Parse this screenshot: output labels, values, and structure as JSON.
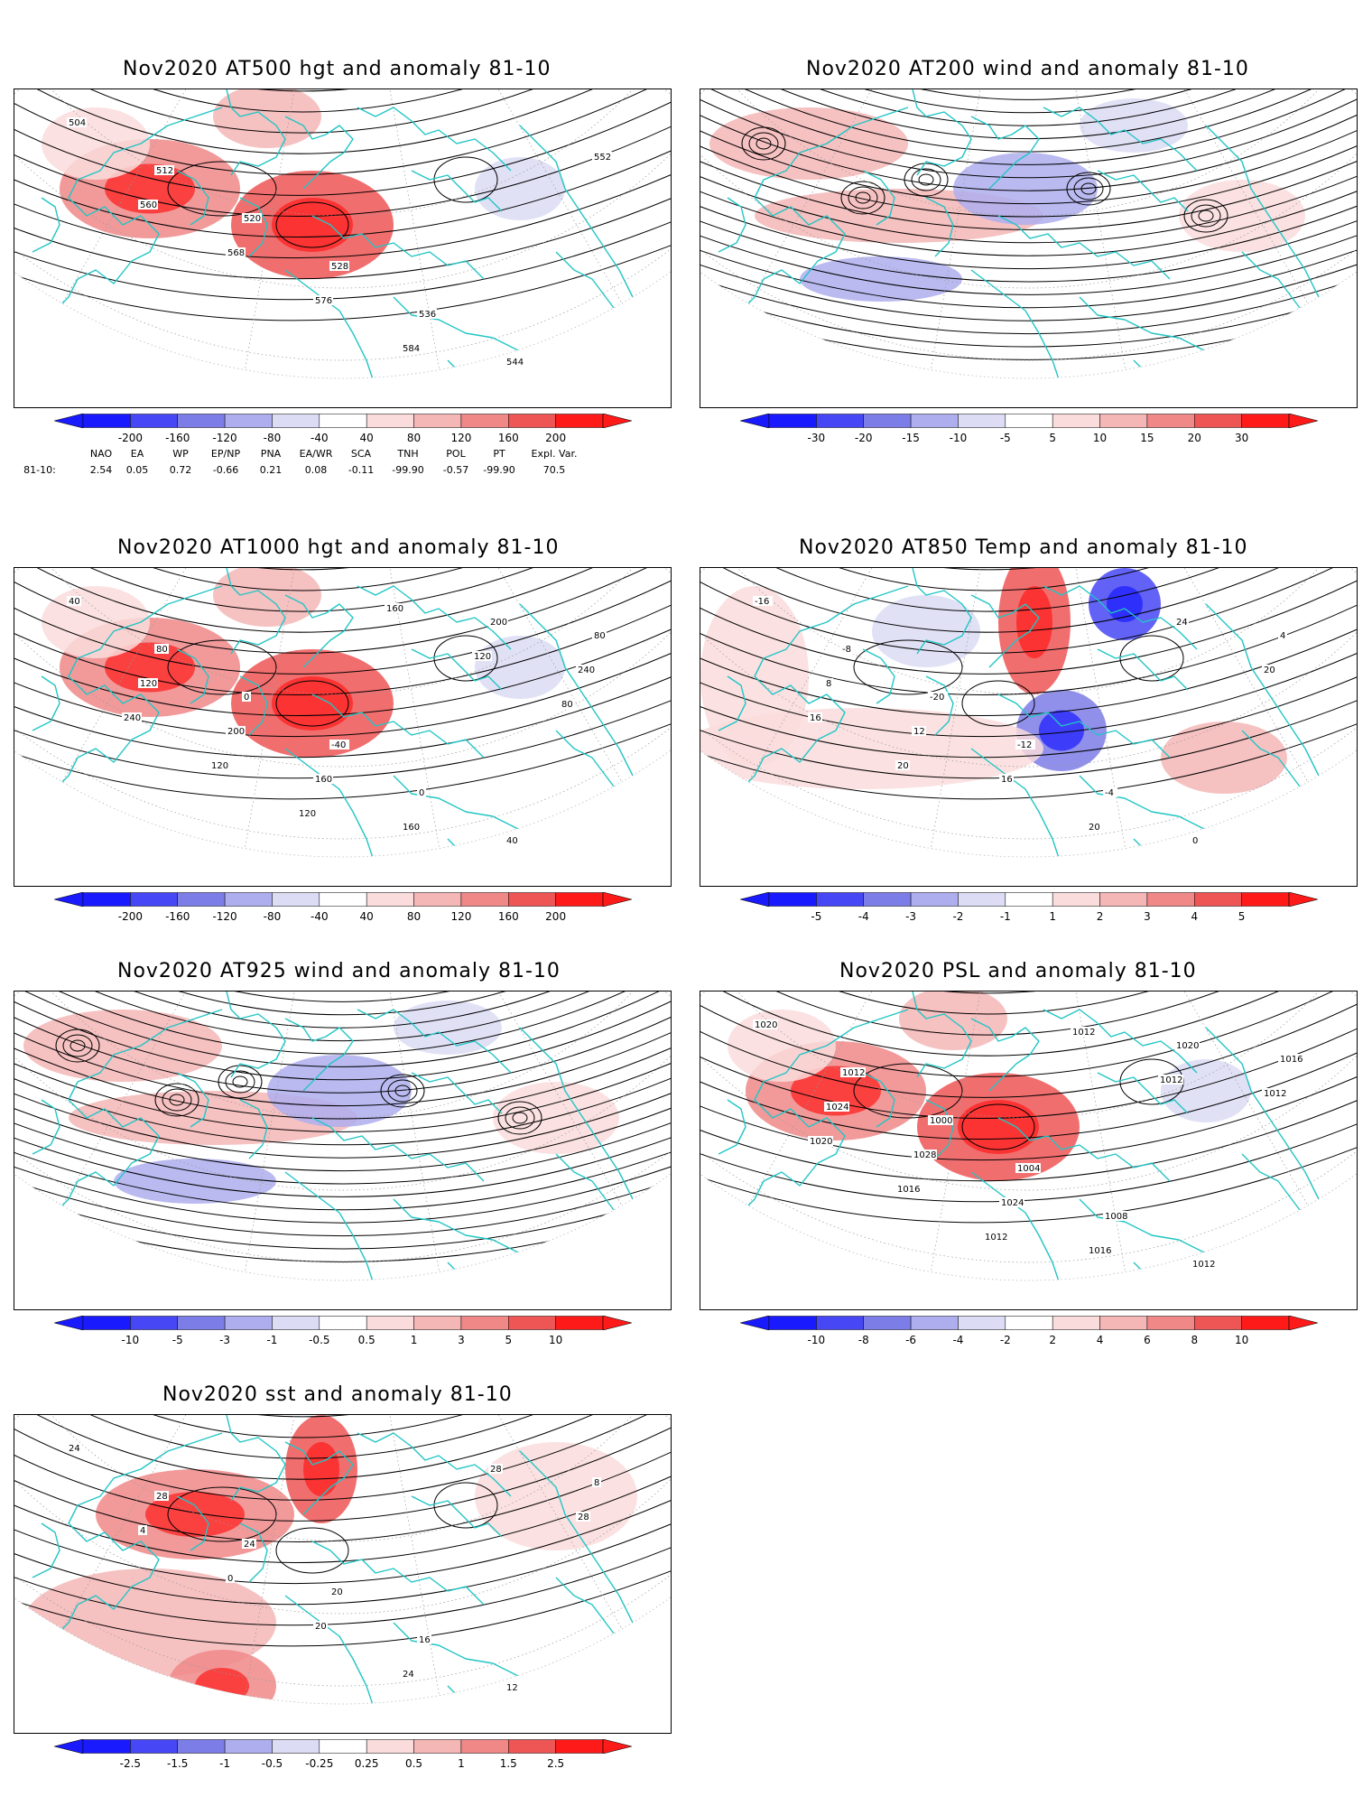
{
  "panels": [
    {
      "id": "p500",
      "title": "Nov2020 AT500 hgt and anomaly 81-10",
      "colorbar": [
        "-200",
        "-160",
        "-120",
        "-80",
        "-40",
        "40",
        "80",
        "120",
        "160",
        "200"
      ],
      "contour_labels": [
        "504",
        "512",
        "520",
        "528",
        "536",
        "544",
        "552",
        "560",
        "568",
        "576",
        "584"
      ]
    },
    {
      "id": "p200",
      "title": "Nov2020 AT200 wind and anomaly 81-10",
      "colorbar": [
        "-30",
        "-20",
        "-15",
        "-10",
        "-5",
        "5",
        "10",
        "15",
        "20",
        "30"
      ],
      "contour_labels": []
    },
    {
      "id": "p1000",
      "title": "Nov2020 AT1000 hgt and anomaly 81-10",
      "colorbar": [
        "-200",
        "-160",
        "-120",
        "-80",
        "-40",
        "40",
        "80",
        "120",
        "160",
        "200"
      ],
      "contour_labels": [
        "40",
        "80",
        "0",
        "-40",
        "0",
        "40",
        "80",
        "120",
        "200",
        "160",
        "160",
        "200",
        "240",
        "240",
        "120",
        "120",
        "160",
        "120",
        "80"
      ]
    },
    {
      "id": "p850",
      "title": "Nov2020 AT850 Temp and anomaly 81-10",
      "colorbar": [
        "-5",
        "-4",
        "-3",
        "-2",
        "-1",
        "1",
        "2",
        "3",
        "4",
        "5"
      ],
      "contour_labels": [
        "-16",
        "-8",
        "-20",
        "-12",
        "-4",
        "0",
        "4",
        "8",
        "12",
        "16",
        "20",
        "24",
        "20",
        "16",
        "20"
      ]
    },
    {
      "id": "p925",
      "title": "Nov2020 AT925 wind and anomaly 81-10",
      "colorbar": [
        "-10",
        "-5",
        "-3",
        "-1",
        "-0.5",
        "0.5",
        "1",
        "3",
        "5",
        "10"
      ],
      "contour_labels": []
    },
    {
      "id": "ppsl",
      "title": "Nov2020 PSL and anomaly 81-10",
      "colorbar": [
        "-10",
        "-8",
        "-6",
        "-4",
        "-2",
        "2",
        "4",
        "6",
        "8",
        "10"
      ],
      "contour_labels": [
        "1020",
        "1012",
        "1000",
        "1004",
        "1008",
        "1012",
        "1016",
        "1024",
        "1028",
        "1024",
        "1016",
        "1020",
        "1012",
        "1020",
        "1016",
        "1012",
        "1012",
        "1012"
      ]
    },
    {
      "id": "psst",
      "title": "Nov2020 sst and anomaly 81-10",
      "colorbar": [
        "-2.5",
        "-1.5",
        "-1",
        "-0.5",
        "-0.25",
        "0.25",
        "0.5",
        "1",
        "1.5",
        "2.5"
      ],
      "contour_labels": [
        "24",
        "28",
        "24",
        "20",
        "16",
        "12",
        "8",
        "4",
        "0",
        "20",
        "24",
        "28",
        "28"
      ]
    }
  ],
  "teleconnections": {
    "row_label": "81-10:",
    "names": [
      "NAO",
      "EA",
      "WP",
      "EP/NP",
      "PNA",
      "EA/WR",
      "SCA",
      "TNH",
      "POL",
      "PT",
      "Expl. Var."
    ],
    "values": [
      "2.54",
      "0.05",
      "0.72",
      "-0.66",
      "0.21",
      "0.08",
      "-0.11",
      "-99.90",
      "-0.57",
      "-99.90",
      "70.5"
    ]
  },
  "colors": {
    "land": "#22c5c5",
    "contour": "#000000",
    "blues": [
      "#1a1aff",
      "#4747f5",
      "#7d7de8",
      "#aeaeee",
      "#dcdcf5"
    ],
    "reds": [
      "#fadcdc",
      "#f5b6b6",
      "#f08888",
      "#ee5555",
      "#ff1a1a"
    ]
  }
}
